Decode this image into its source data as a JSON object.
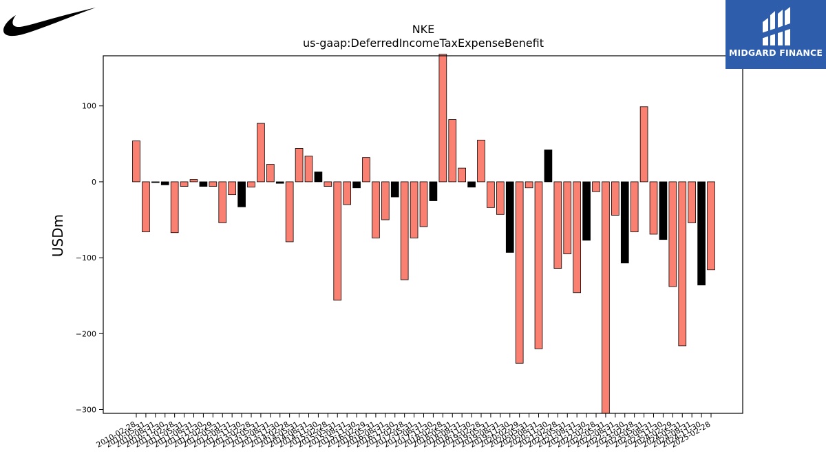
{
  "brand": {
    "left_logo_icon": "nike-swoosh-icon",
    "right_logo_icon": "midgard-finance-logo-icon",
    "right_logo_text": "MIDGARD FINANCE",
    "right_logo_bg": "#2d5dab"
  },
  "chart_data": {
    "type": "bar",
    "title": "NKE",
    "subtitle": "us-gaap:DeferredIncomeTaxExpenseBenefit",
    "xlabel": "",
    "ylabel": "USDm",
    "ylim": [
      -305,
      166
    ],
    "yticks": [
      100,
      0,
      -100,
      -200,
      -300
    ],
    "grid": false,
    "colors": {
      "default": "#fa8072",
      "highlight": "#000000",
      "edge": "#000000"
    },
    "categories": [
      "2010-02-28",
      "2010-05-31",
      "2010-08-31",
      "2010-11-30",
      "2011-02-28",
      "2011-05-31",
      "2011-08-31",
      "2011-11-30",
      "2012-02-29",
      "2012-05-31",
      "2012-08-31",
      "2012-11-30",
      "2013-02-28",
      "2013-05-31",
      "2013-08-31",
      "2013-11-30",
      "2014-02-28",
      "2014-05-31",
      "2014-08-31",
      "2014-11-30",
      "2015-02-28",
      "2015-05-31",
      "2015-08-31",
      "2015-11-30",
      "2016-02-29",
      "2016-05-31",
      "2016-08-31",
      "2016-11-30",
      "2017-02-28",
      "2017-05-31",
      "2017-08-31",
      "2017-11-30",
      "2018-02-28",
      "2018-05-31",
      "2018-08-31",
      "2018-11-30",
      "2019-02-28",
      "2019-05-31",
      "2019-08-31",
      "2019-11-30",
      "2020-02-29",
      "2020-05-31",
      "2020-08-31",
      "2020-11-30",
      "2021-02-28",
      "2021-05-31",
      "2021-08-31",
      "2021-11-30",
      "2022-02-28",
      "2022-05-31",
      "2022-08-31",
      "2022-11-30",
      "2023-02-28",
      "2023-05-31",
      "2023-08-31",
      "2023-11-30",
      "2024-02-29",
      "2024-05-31",
      "2024-08-31",
      "2024-11-30",
      "2025-02-28"
    ],
    "values": [
      54,
      -66,
      -1,
      -4,
      -67,
      -6,
      3,
      -6,
      -6,
      -54,
      -17,
      -33,
      -7,
      77,
      23,
      -2,
      -79,
      44,
      34,
      13,
      -6,
      -156,
      -30,
      -8,
      32,
      -74,
      -50,
      -20,
      -129,
      -74,
      -59,
      -25,
      168,
      82,
      18,
      -7,
      55,
      -34,
      -43,
      -93,
      -239,
      -8,
      -220,
      42,
      -114,
      -95,
      -146,
      -77,
      -13,
      -305,
      -44,
      -107,
      -66,
      99,
      -69,
      -76,
      -138,
      -216,
      -54,
      -136,
      -116
    ],
    "highlight": [
      false,
      false,
      true,
      true,
      false,
      false,
      false,
      true,
      false,
      false,
      false,
      true,
      false,
      false,
      false,
      true,
      false,
      false,
      false,
      true,
      false,
      false,
      false,
      true,
      false,
      false,
      false,
      true,
      false,
      false,
      false,
      true,
      false,
      false,
      false,
      true,
      false,
      false,
      false,
      true,
      false,
      false,
      false,
      true,
      false,
      false,
      false,
      true,
      false,
      false,
      false,
      true,
      false,
      false,
      false,
      true,
      false,
      false,
      false,
      true,
      false
    ]
  }
}
